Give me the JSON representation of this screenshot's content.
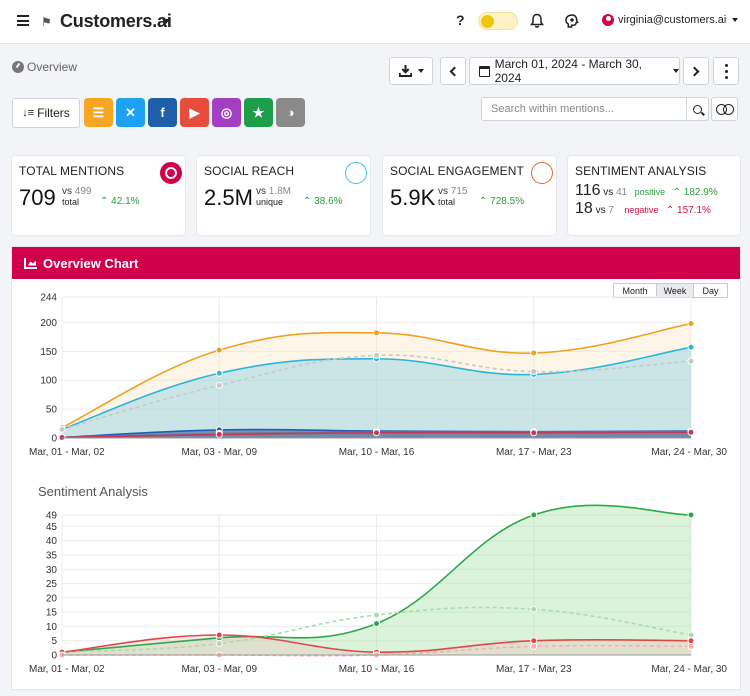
{
  "header": {
    "brand": "Customers.ai",
    "help": "?",
    "user_email": "virginia@customers.ai"
  },
  "toolbar": {
    "overview_label": "Overview",
    "date_range": "March 01, 2024 - March 30, 2024",
    "filters_label": "Filters",
    "search_placeholder": "Search within mentions...",
    "sources": [
      {
        "icon": "document-icon",
        "color": "#f5a623"
      },
      {
        "icon": "x-twitter-icon",
        "color": "#1da1f2"
      },
      {
        "icon": "facebook-icon",
        "color": "#1d5fa8"
      },
      {
        "icon": "youtube-icon",
        "color": "#e74c3c"
      },
      {
        "icon": "instagram-icon",
        "color": "#a43fc4"
      },
      {
        "icon": "star-icon",
        "color": "#1e9e4a"
      },
      {
        "icon": "half-circle-icon",
        "color": "#8a8a8a"
      }
    ]
  },
  "cards": {
    "total_mentions": {
      "title": "TOTAL MENTIONS",
      "value": "709",
      "vs_label": "vs",
      "vs_value": "499",
      "sub": "total",
      "change": "42.1%",
      "ring_color": "#d0004b"
    },
    "social_reach": {
      "title": "SOCIAL REACH",
      "value": "2.5M",
      "vs_label": "vs",
      "vs_value": "1.8M",
      "sub": "unique",
      "change": "38.6%",
      "ring_color": "#3bc4e6"
    },
    "social_engagement": {
      "title": "SOCIAL ENGAGEMENT",
      "value": "5.9K",
      "vs_label": "vs",
      "vs_value": "715",
      "sub": "total",
      "change": "728.5%",
      "ring_color": "#e8632c"
    },
    "sentiment": {
      "title": "SENTIMENT ANALYSIS",
      "positive": {
        "value": "116",
        "vs_label": "vs",
        "vs_value": "41",
        "label": "positive",
        "change": "182.9%"
      },
      "negative": {
        "value": "18",
        "vs_label": "vs",
        "vs_value": "7",
        "label": "negative",
        "change": "157.1%"
      }
    }
  },
  "overview_chart": {
    "header": "Overview Chart",
    "periods": [
      "Month",
      "Week",
      "Day"
    ],
    "active_period": "Week",
    "chart_data": {
      "type": "area",
      "categories": [
        "Mar, 01 - Mar, 02",
        "Mar, 03 - Mar, 09",
        "Mar, 10 - Mar, 16",
        "Mar, 17 - Mar, 23",
        "Mar, 24 - Mar, 30"
      ],
      "ylim": [
        0,
        244
      ],
      "yticks": [
        0,
        50,
        100,
        150,
        200,
        244
      ],
      "series": [
        {
          "values": [
            18,
            152,
            182,
            147,
            198
          ],
          "color": "#f0a020",
          "fill": "rgba(250,225,190,0.35)"
        },
        {
          "values": [
            15,
            112,
            137,
            110,
            157
          ],
          "color": "#2bb5d8",
          "fill": "rgba(110,200,225,0.35)"
        },
        {
          "values": [
            15,
            91,
            143,
            115,
            133
          ],
          "color": "#c8c8c8",
          "dashed": true
        },
        {
          "values": [
            1,
            14,
            12,
            11,
            12
          ],
          "color": "#1c5fb5",
          "fill": "rgba(40,90,170,0.55)"
        },
        {
          "values": [
            1,
            8,
            10,
            10,
            11
          ],
          "color": "#7a7a8a",
          "fill": "rgba(120,120,130,0.45)"
        },
        {
          "values": [
            1,
            6,
            9,
            9,
            10
          ],
          "color": "#c23a5a"
        }
      ]
    }
  },
  "sentiment_chart": {
    "title": "Sentiment Analysis",
    "chart_data": {
      "type": "area",
      "categories": [
        "Mar, 01 - Mar, 02",
        "Mar, 03 - Mar, 09",
        "Mar, 10 - Mar, 16",
        "Mar, 17 - Mar, 23",
        "Mar, 24 - Mar, 30"
      ],
      "ylim": [
        0,
        49
      ],
      "yticks": [
        0,
        5,
        10,
        15,
        20,
        25,
        30,
        35,
        40,
        45,
        49
      ],
      "series": [
        {
          "values": [
            1,
            6,
            11,
            49,
            49
          ],
          "color": "#2ea84a",
          "fill": "rgba(150,220,150,0.35)"
        },
        {
          "values": [
            1,
            4,
            14,
            16,
            7
          ],
          "color": "#a8dcae",
          "dashed": true
        },
        {
          "values": [
            1,
            7,
            1,
            5,
            5
          ],
          "color": "#e04848",
          "fill": "rgba(240,170,170,0.25)"
        },
        {
          "values": [
            0,
            0,
            0,
            3,
            3
          ],
          "color": "#f2b0b0",
          "dashed": true
        }
      ]
    }
  }
}
